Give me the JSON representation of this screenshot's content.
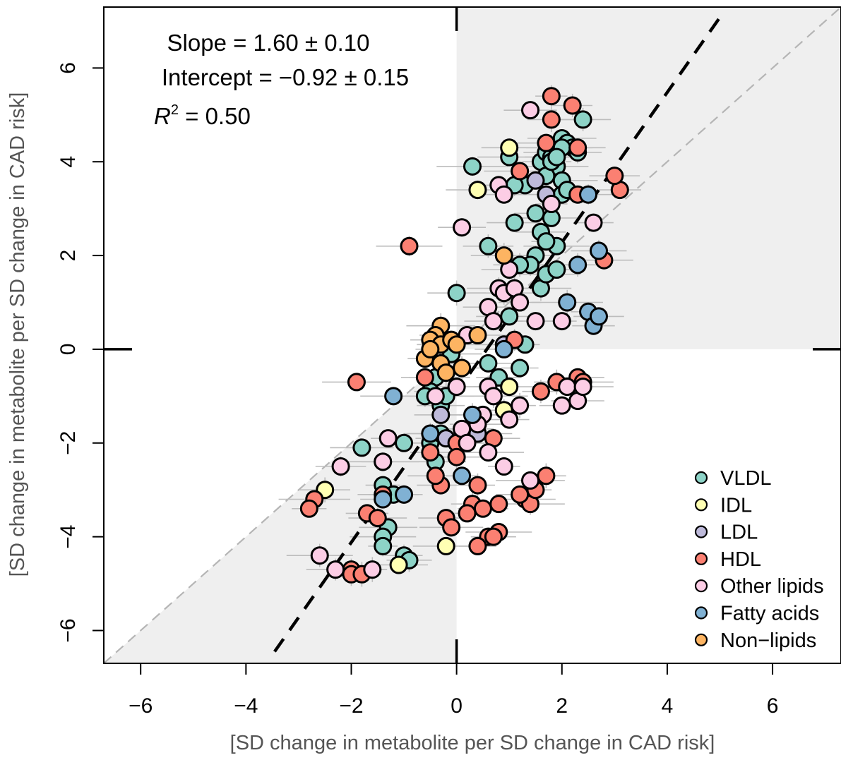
{
  "chart_data": {
    "type": "scatter",
    "xlabel": "[SD change in metabolite per SD change in CAD risk]",
    "ylabel": "[SD change in metabolite per SD change in CAD risk]",
    "xlim": [
      -6.7,
      7.3
    ],
    "ylim": [
      -6.7,
      7.3
    ],
    "xticks": [
      -6,
      -4,
      -2,
      0,
      2,
      4,
      6
    ],
    "yticks": [
      -6,
      -4,
      -2,
      0,
      2,
      4,
      6
    ],
    "xtick_labels": [
      "−6",
      "−4",
      "−2",
      "0",
      "2",
      "4",
      "6"
    ],
    "ytick_labels": [
      "−6",
      "−4",
      "−2",
      "0",
      "2",
      "4",
      "6"
    ],
    "annotations": {
      "slope": "Slope = 1.60 ± 0.10",
      "intercept": "Intercept = −0.92 ±  0.15",
      "r2_symbol": "R",
      "r2_exp": "2",
      "r2_value": " = 0.50"
    },
    "fit_line": {
      "slope": 1.6,
      "intercept": -0.92,
      "style": "dashed black"
    },
    "reference_line": {
      "slope": 1,
      "intercept": 0,
      "style": "dashed grey"
    },
    "grid": false,
    "legend_position": "bottom-right",
    "series": [
      {
        "name": "VLDL",
        "color": "#8DD3C7",
        "points": [
          [
            1.6,
            4.0
          ],
          [
            1.7,
            4.2
          ],
          [
            1.8,
            4.1
          ],
          [
            1.9,
            4.3
          ],
          [
            2.0,
            4.5
          ],
          [
            2.1,
            4.4
          ],
          [
            2.2,
            4.3
          ],
          [
            2.3,
            4.2
          ],
          [
            2.4,
            4.9
          ],
          [
            1.9,
            3.9
          ],
          [
            2.0,
            3.6
          ],
          [
            1.7,
            3.7
          ],
          [
            1.5,
            2.9
          ],
          [
            1.6,
            2.5
          ],
          [
            1.8,
            2.8
          ],
          [
            1.9,
            2.2
          ],
          [
            1.7,
            2.3
          ],
          [
            1.5,
            2.0
          ],
          [
            1.4,
            1.8
          ],
          [
            1.2,
            1.8
          ],
          [
            1.6,
            1.3
          ],
          [
            1.7,
            1.6
          ],
          [
            1.9,
            1.7
          ],
          [
            2.0,
            3.3
          ],
          [
            2.1,
            3.4
          ],
          [
            1.1,
            2.7
          ],
          [
            1.0,
            4.1
          ],
          [
            0.3,
            3.9
          ],
          [
            1.3,
            3.5
          ],
          [
            1.1,
            3.5
          ],
          [
            0.6,
            2.2
          ],
          [
            0.0,
            1.2
          ],
          [
            1.0,
            0.7
          ],
          [
            1.3,
            0.1
          ],
          [
            1.2,
            -0.4
          ],
          [
            0.8,
            -0.6
          ],
          [
            0.6,
            -0.3
          ],
          [
            -0.1,
            -0.1
          ],
          [
            -0.4,
            -0.6
          ],
          [
            -0.5,
            -0.9
          ],
          [
            -0.6,
            -1.0
          ],
          [
            -0.3,
            -1.2
          ],
          [
            -0.2,
            -1.0
          ],
          [
            -1.8,
            -2.1
          ],
          [
            -1.4,
            -2.4
          ],
          [
            -1.4,
            -2.9
          ],
          [
            -1.0,
            -2.0
          ],
          [
            -1.2,
            -3.1
          ],
          [
            -1.3,
            -3.8
          ],
          [
            -1.4,
            -4.0
          ],
          [
            -1.4,
            -4.2
          ],
          [
            -1.0,
            -4.4
          ],
          [
            -0.9,
            -4.5
          ],
          [
            -0.5,
            -2.0
          ],
          [
            -0.4,
            -2.4
          ],
          [
            -0.3,
            -1.8
          ],
          [
            2.0,
            4.3
          ],
          [
            1.8,
            4.0
          ],
          [
            1.9,
            4.1
          ]
        ]
      },
      {
        "name": "IDL",
        "color": "#FFFFB3",
        "points": [
          [
            1.0,
            4.3
          ],
          [
            0.4,
            3.4
          ],
          [
            1.0,
            -0.8
          ],
          [
            0.9,
            -1.3
          ],
          [
            0.3,
            -1.8
          ],
          [
            -2.5,
            -3.0
          ],
          [
            -1.1,
            -4.6
          ],
          [
            -0.2,
            -4.2
          ]
        ]
      },
      {
        "name": "LDL",
        "color": "#BEBADA",
        "points": [
          [
            1.7,
            3.3
          ],
          [
            1.5,
            3.6
          ],
          [
            0.9,
            0.1
          ],
          [
            -0.3,
            -1.4
          ],
          [
            -0.2,
            -1.9
          ],
          [
            0.4,
            -1.8
          ]
        ]
      },
      {
        "name": "HDL",
        "color": "#FB8072",
        "points": [
          [
            1.8,
            5.4
          ],
          [
            2.2,
            5.2
          ],
          [
            1.8,
            4.9
          ],
          [
            2.3,
            4.3
          ],
          [
            1.7,
            4.4
          ],
          [
            1.2,
            3.8
          ],
          [
            2.3,
            3.3
          ],
          [
            3.1,
            3.4
          ],
          [
            3.0,
            3.7
          ],
          [
            2.8,
            1.9
          ],
          [
            -0.9,
            2.2
          ],
          [
            1.1,
            0.2
          ],
          [
            1.6,
            -0.9
          ],
          [
            1.9,
            -0.7
          ],
          [
            2.3,
            -0.6
          ],
          [
            2.4,
            -0.7
          ],
          [
            -1.9,
            -0.7
          ],
          [
            -0.6,
            -0.6
          ],
          [
            -0.5,
            -2.2
          ],
          [
            -0.3,
            -2.9
          ],
          [
            -0.4,
            -2.7
          ],
          [
            0.0,
            -2.0
          ],
          [
            0.0,
            -2.3
          ],
          [
            0.4,
            -2.9
          ],
          [
            0.3,
            -3.3
          ],
          [
            0.5,
            -3.4
          ],
          [
            0.8,
            -3.3
          ],
          [
            0.8,
            -3.9
          ],
          [
            0.6,
            -4.0
          ],
          [
            0.4,
            -4.2
          ],
          [
            0.2,
            -3.5
          ],
          [
            0.7,
            -1.9
          ],
          [
            1.3,
            -3.2
          ],
          [
            1.4,
            -3.3
          ],
          [
            1.5,
            -3.0
          ],
          [
            1.7,
            -2.7
          ],
          [
            1.2,
            -3.1
          ],
          [
            -0.2,
            -3.6
          ],
          [
            -0.1,
            -3.8
          ],
          [
            -2.7,
            -3.2
          ],
          [
            -2.8,
            -3.4
          ],
          [
            -1.7,
            -3.5
          ],
          [
            -1.4,
            -3.1
          ],
          [
            -1.5,
            -3.6
          ],
          [
            -2.0,
            -4.7
          ],
          [
            -2.0,
            -4.8
          ],
          [
            -1.8,
            -4.8
          ],
          [
            0.7,
            -4.0
          ]
        ]
      },
      {
        "name": "Other lipids",
        "color": "#FCCDE5",
        "points": [
          [
            1.4,
            5.1
          ],
          [
            0.8,
            3.5
          ],
          [
            0.9,
            3.3
          ],
          [
            1.8,
            3.1
          ],
          [
            2.6,
            2.7
          ],
          [
            0.1,
            2.6
          ],
          [
            1.0,
            1.7
          ],
          [
            0.8,
            1.3
          ],
          [
            0.9,
            1.2
          ],
          [
            1.1,
            1.3
          ],
          [
            1.2,
            1.0
          ],
          [
            0.6,
            0.9
          ],
          [
            0.7,
            0.6
          ],
          [
            1.5,
            0.6
          ],
          [
            2.0,
            0.6
          ],
          [
            0.2,
            0.3
          ],
          [
            0.0,
            -0.8
          ],
          [
            -0.4,
            -1.0
          ],
          [
            0.6,
            -0.8
          ],
          [
            0.7,
            -1.0
          ],
          [
            1.2,
            -1.2
          ],
          [
            1.0,
            -1.5
          ],
          [
            0.5,
            -1.4
          ],
          [
            0.4,
            -1.6
          ],
          [
            0.1,
            -1.7
          ],
          [
            0.6,
            -2.2
          ],
          [
            -1.3,
            -1.9
          ],
          [
            -1.4,
            -2.4
          ],
          [
            -2.2,
            -2.5
          ],
          [
            -2.3,
            -4.7
          ],
          [
            -2.6,
            -4.4
          ],
          [
            -1.6,
            -4.7
          ],
          [
            2.1,
            -0.8
          ],
          [
            2.0,
            -1.2
          ],
          [
            2.3,
            -1.1
          ],
          [
            2.4,
            -0.8
          ],
          [
            1.4,
            -2.8
          ],
          [
            0.9,
            -2.5
          ],
          [
            0.2,
            -2.0
          ]
        ]
      },
      {
        "name": "Fatty acids",
        "color": "#80B1D3",
        "points": [
          [
            2.5,
            3.3
          ],
          [
            2.7,
            2.1
          ],
          [
            2.3,
            1.8
          ],
          [
            2.1,
            1.0
          ],
          [
            2.5,
            0.8
          ],
          [
            2.6,
            0.5
          ],
          [
            2.7,
            0.7
          ],
          [
            0.9,
            0.0
          ],
          [
            -1.2,
            -1.0
          ],
          [
            0.1,
            -2.7
          ],
          [
            -1.0,
            -3.1
          ],
          [
            -1.4,
            -3.2
          ],
          [
            -0.5,
            -1.8
          ],
          [
            0.3,
            -1.4
          ]
        ]
      },
      {
        "name": "Non−lipids",
        "color": "#FDB462",
        "points": [
          [
            -0.3,
            0.5
          ],
          [
            -0.4,
            0.3
          ],
          [
            -0.5,
            0.2
          ],
          [
            -0.3,
            0.1
          ],
          [
            -0.1,
            0.2
          ],
          [
            0.0,
            0.1
          ],
          [
            0.4,
            0.3
          ],
          [
            -0.6,
            -0.2
          ],
          [
            -0.3,
            -0.3
          ],
          [
            -0.2,
            -0.5
          ],
          [
            0.1,
            -0.4
          ],
          [
            0.9,
            2.0
          ],
          [
            -0.5,
            0.0
          ]
        ]
      }
    ]
  }
}
